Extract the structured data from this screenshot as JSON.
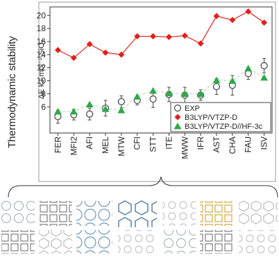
{
  "chart_data": {
    "type": "line",
    "annotations": [
      "Thermodynamic stability"
    ],
    "ylabel": "ΔE kJ·mol⁻¹·SiO₂",
    "categories": [
      "FER",
      "MFI2",
      "AFI",
      "MEL",
      "MTW",
      "CFI",
      "STT",
      "ITE",
      "MWW",
      "IFR",
      "AST",
      "CHA",
      "FAU",
      "ISV"
    ],
    "ylim": [
      2,
      21.3
    ],
    "yticks": [
      6,
      8,
      10,
      12,
      14,
      16,
      18,
      20
    ],
    "legend": "lower right",
    "series": [
      {
        "name": "EXP",
        "color": "#444444",
        "values": [
          4.5,
          4.8,
          4.9,
          5.8,
          6.8,
          7.0,
          7.2,
          7.9,
          7.8,
          7.8,
          9.1,
          9.3,
          11.1,
          12.3
        ],
        "errors": [
          1.0,
          0.8,
          0.9,
          1.2,
          0.9,
          0.7,
          1.3,
          1.1,
          1.2,
          0.8,
          1.2,
          1.5,
          0.9,
          1.1
        ]
      },
      {
        "name": "B3LYP/VTZP-D",
        "color": "#e0201c",
        "values": [
          14.7,
          13.5,
          15.6,
          14.3,
          14.0,
          16.8,
          16.8,
          16.7,
          16.9,
          15.7,
          19.9,
          19.3,
          20.6,
          18.9
        ]
      },
      {
        "name": "B3LYP/VTZP-D//HF-3c",
        "color": "#2ea84a",
        "values": [
          5.3,
          5.3,
          6.4,
          5.7,
          5.5,
          7.6,
          8.5,
          8.1,
          8.0,
          8.0,
          10.1,
          10.0,
          11.9,
          10.5
        ]
      }
    ]
  }
}
